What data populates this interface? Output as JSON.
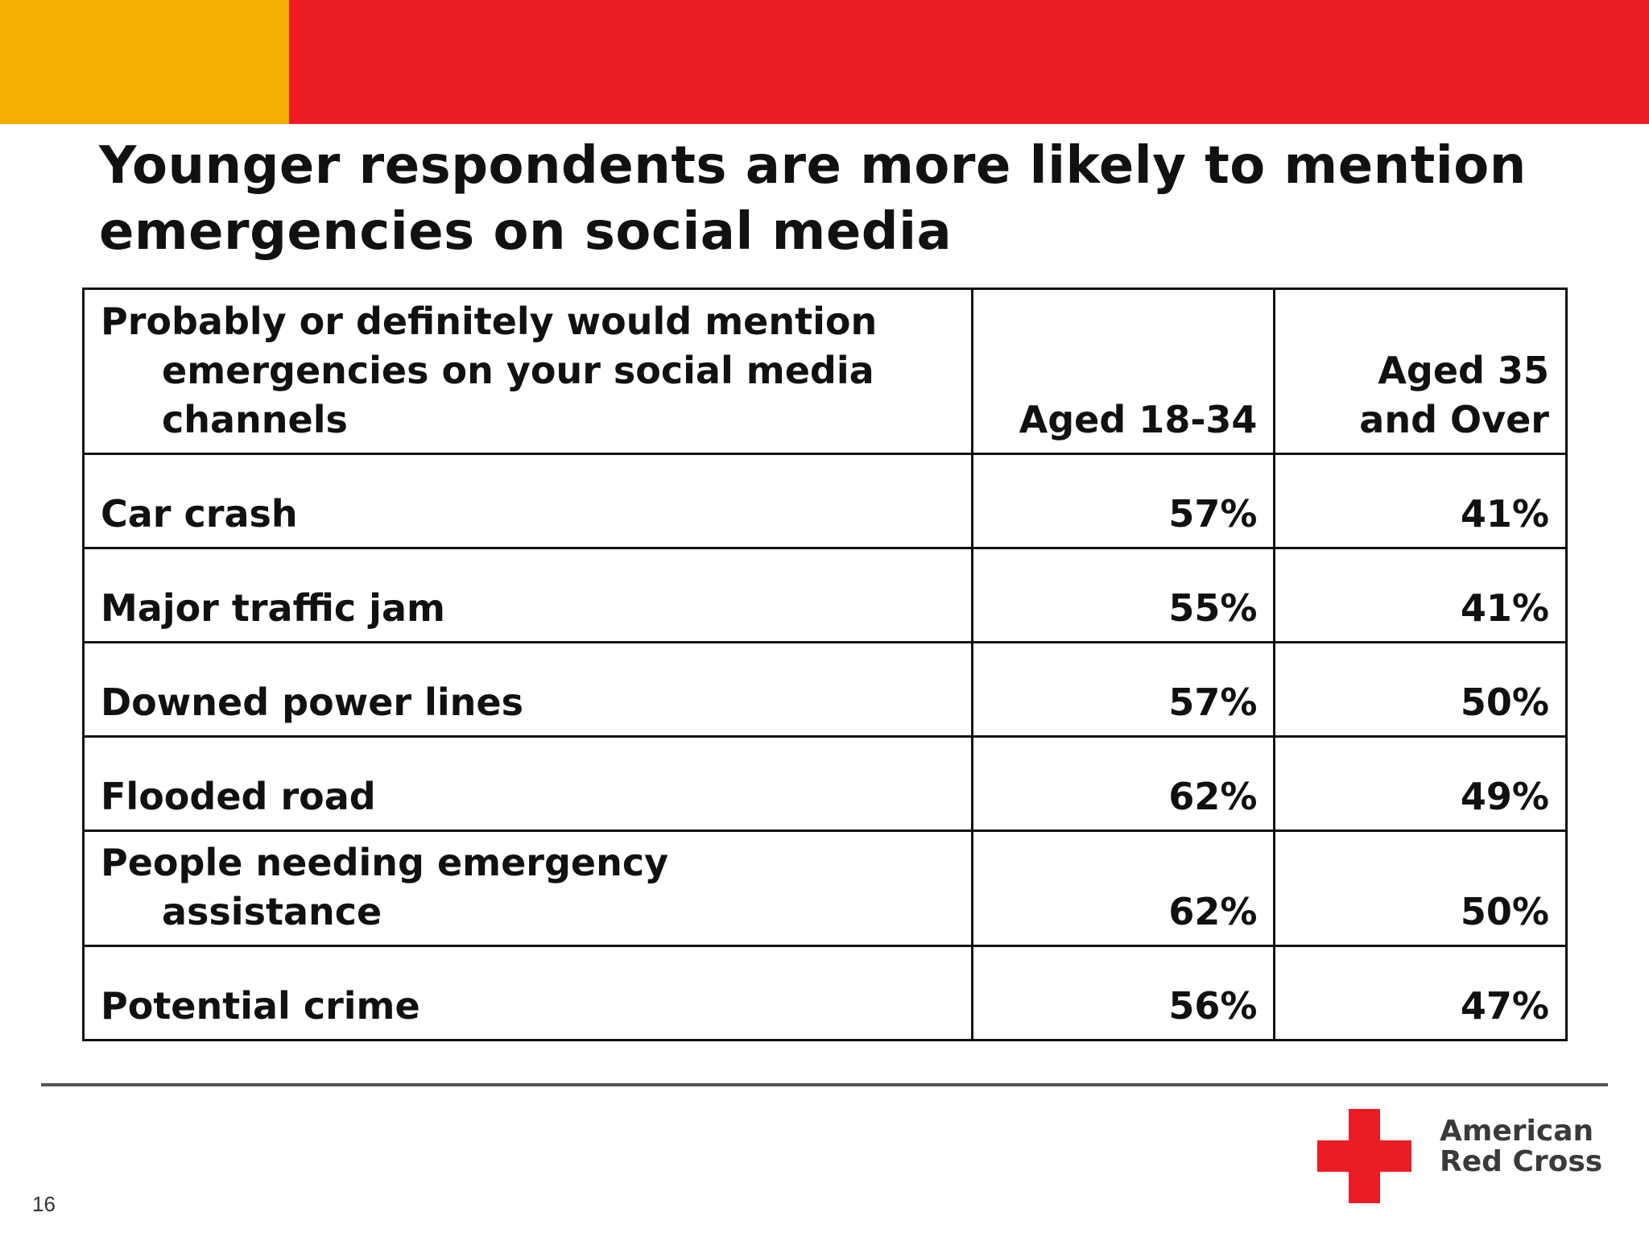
{
  "colors": {
    "accent_orange": "#F4AD02",
    "accent_red": "#EC1C24",
    "text": "#111111"
  },
  "title": "Younger respondents are more likely to mention emergencies on social media",
  "table": {
    "headers": {
      "label": "Probably or definitely would mention emergencies on your social media channels",
      "col1": "Aged 18-34",
      "col2": "Aged 35 and Over"
    },
    "rows": [
      {
        "label": "Car crash",
        "aged_18_34": "57%",
        "aged_35_over": "41%"
      },
      {
        "label": "Major traffic jam",
        "aged_18_34": "55%",
        "aged_35_over": "41%"
      },
      {
        "label": "Downed power lines",
        "aged_18_34": "57%",
        "aged_35_over": "50%"
      },
      {
        "label": "Flooded road",
        "aged_18_34": "62%",
        "aged_35_over": "49%"
      },
      {
        "label": "People needing emergency assistance",
        "aged_18_34": "62%",
        "aged_35_over": "50%"
      },
      {
        "label": "Potential crime",
        "aged_18_34": "56%",
        "aged_35_over": "47%"
      }
    ]
  },
  "logo": {
    "line1": "American",
    "line2": "Red Cross",
    "icon": "red-cross-icon"
  },
  "page_number": "16"
}
